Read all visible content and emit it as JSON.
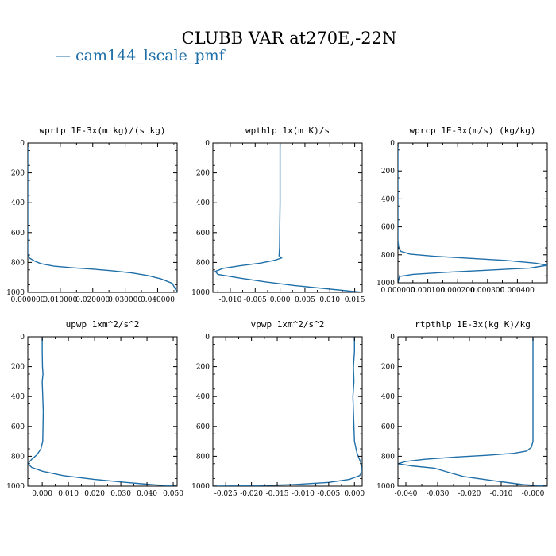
{
  "figure": {
    "title": "CLUBB VAR at270E,-22N",
    "legend_label": "— cam144_lscale_pmf",
    "line_color": "#1f6fa8"
  },
  "chart_data": [
    {
      "type": "line",
      "title": "wprtp  1E-3x(m kg)/(s kg)",
      "xlim": [
        0.0,
        0.046
      ],
      "ylim": [
        1000,
        0
      ],
      "y_inverted": true,
      "x_ticks": [
        0.0,
        0.01,
        0.02,
        0.03,
        0.04
      ],
      "x_tick_labels": [
        "0.000000",
        "0.010000",
        "0.020000",
        "0.030000",
        "0.040000"
      ],
      "y_ticks": [
        0,
        200,
        400,
        600,
        800,
        1000
      ],
      "y_tick_labels": [
        "0",
        "200",
        "400",
        "600",
        "800",
        "1000"
      ],
      "series": [
        {
          "x": [
            0,
            0,
            0,
            0.0006,
            0.002,
            0.004,
            0.008,
            0.014,
            0.02,
            0.026,
            0.032,
            0.037,
            0.041,
            0.0445,
            0.046
          ],
          "y": [
            0,
            400,
            750,
            772,
            790,
            808,
            825,
            836,
            845,
            856,
            870,
            888,
            910,
            940,
            1000
          ]
        }
      ]
    },
    {
      "type": "line",
      "title": "wpthlp  1x(m K)/s",
      "xlim": [
        -0.0135,
        0.0165
      ],
      "ylim": [
        1000,
        0
      ],
      "y_inverted": true,
      "x_ticks": [
        -0.01,
        -0.005,
        0.0,
        0.005,
        0.01,
        0.015
      ],
      "x_tick_labels": [
        "-0.010",
        "-0.005",
        "0.000",
        "0.005",
        "0.010",
        "0.015"
      ],
      "y_ticks": [
        0,
        200,
        400,
        600,
        800,
        1000
      ],
      "y_tick_labels": [
        "0",
        "200",
        "400",
        "600",
        "800",
        "1000"
      ],
      "series": [
        {
          "x": [
            0.0,
            0.0,
            -0.0001,
            -0.0002,
            0.0003,
            -0.001,
            -0.004,
            -0.008,
            -0.0115,
            -0.013,
            -0.0125,
            -0.008,
            -0.003,
            0.003,
            0.009,
            0.0135,
            0.0165
          ],
          "y": [
            0,
            400,
            700,
            755,
            770,
            785,
            805,
            822,
            840,
            860,
            880,
            905,
            930,
            955,
            975,
            990,
            1000
          ]
        }
      ]
    },
    {
      "type": "line",
      "title": "wprcp  1E-3x(m/s) (kg/kg)",
      "xlim": [
        0.0,
        0.0005
      ],
      "ylim": [
        1000,
        0
      ],
      "y_inverted": true,
      "x_ticks": [
        0.0,
        0.0001,
        0.0002,
        0.0003,
        0.0004
      ],
      "x_tick_labels": [
        "0.000000",
        "0.000100",
        "0.000200",
        "0.000300",
        "0.000400"
      ],
      "y_ticks": [
        0,
        200,
        400,
        600,
        800,
        1000
      ],
      "y_tick_labels": [
        "0",
        "200",
        "400",
        "600",
        "800",
        "1000"
      ],
      "series": [
        {
          "x": [
            0,
            0,
            0,
            3e-06,
            1e-05,
            4e-05,
            0.00012,
            0.00024,
            0.00036,
            0.00046,
            0.0005,
            0.00044,
            0.0003,
            0.00016,
            5e-05,
            5e-06,
            0
          ],
          "y": [
            0,
            400,
            700,
            755,
            775,
            795,
            810,
            825,
            840,
            860,
            875,
            895,
            910,
            925,
            940,
            955,
            1000
          ]
        }
      ]
    },
    {
      "type": "line",
      "title": "upwp  1xm^2/s^2",
      "xlim": [
        -0.0055,
        0.0515
      ],
      "ylim": [
        1000,
        0
      ],
      "y_inverted": true,
      "x_ticks": [
        0.0,
        0.01,
        0.02,
        0.03,
        0.04,
        0.05
      ],
      "x_tick_labels": [
        "0.000",
        "0.010",
        "0.020",
        "0.030",
        "0.040",
        "0.050"
      ],
      "y_ticks": [
        0,
        200,
        400,
        600,
        800,
        1000
      ],
      "y_tick_labels": [
        "0",
        "200",
        "400",
        "600",
        "800",
        "1000"
      ],
      "series": [
        {
          "x": [
            0.0,
            0.0,
            0.0001,
            0.0003,
            0.0,
            0.0002,
            0.0004,
            0.0003,
            0.0002,
            -0.0005,
            -0.002,
            -0.004,
            -0.0055,
            -0.004,
            0.0,
            0.008,
            0.02,
            0.032,
            0.042,
            0.048,
            0.0515
          ],
          "y": [
            0,
            100,
            200,
            250,
            300,
            400,
            500,
            600,
            700,
            750,
            790,
            820,
            850,
            875,
            900,
            930,
            955,
            975,
            990,
            997,
            1000
          ]
        }
      ]
    },
    {
      "type": "line",
      "title": "vpwp  1xm^2/s^2",
      "xlim": [
        -0.0275,
        0.0015
      ],
      "ylim": [
        1000,
        0
      ],
      "y_inverted": true,
      "x_ticks": [
        -0.025,
        -0.02,
        -0.015,
        -0.01,
        -0.005,
        0.0
      ],
      "x_tick_labels": [
        "-0.025",
        "-0.020",
        "-0.015",
        "-0.010",
        "-0.005",
        "0.000"
      ],
      "y_ticks": [
        0,
        200,
        400,
        600,
        800,
        1000
      ],
      "y_tick_labels": [
        "0",
        "200",
        "400",
        "600",
        "800",
        "1000"
      ],
      "series": [
        {
          "x": [
            0.0,
            0.0,
            -0.0002,
            -0.0001,
            -0.0003,
            -0.0002,
            -0.0001,
            0.0,
            0.0005,
            0.0012,
            0.0015,
            0.001,
            -0.001,
            -0.005,
            -0.012,
            -0.02,
            -0.0275
          ],
          "y": [
            0,
            100,
            200,
            300,
            400,
            500,
            600,
            700,
            780,
            840,
            900,
            930,
            955,
            975,
            990,
            997,
            1000
          ]
        }
      ]
    },
    {
      "type": "line",
      "title": "rtpthlp  1E-3x(kg K)/kg",
      "xlim": [
        -0.0425,
        0.0045
      ],
      "ylim": [
        1000,
        0
      ],
      "y_inverted": true,
      "x_ticks": [
        -0.04,
        -0.03,
        -0.02,
        -0.01,
        0.0
      ],
      "x_tick_labels": [
        "-0.040",
        "-0.030",
        "-0.020",
        "-0.010",
        "-0.000"
      ],
      "y_ticks": [
        0,
        200,
        400,
        600,
        800,
        1000
      ],
      "y_tick_labels": [
        "0",
        "200",
        "400",
        "600",
        "800",
        "1000"
      ],
      "series": [
        {
          "x": [
            0.0,
            0.0,
            0.0,
            -0.0005,
            -0.002,
            -0.006,
            -0.014,
            -0.024,
            -0.034,
            -0.04,
            -0.0425,
            -0.038,
            -0.031,
            -0.027,
            -0.022,
            -0.012,
            -0.003,
            0.0045
          ],
          "y": [
            0,
            400,
            700,
            740,
            765,
            780,
            793,
            805,
            820,
            835,
            850,
            865,
            880,
            905,
            935,
            965,
            990,
            1000
          ]
        }
      ]
    }
  ]
}
